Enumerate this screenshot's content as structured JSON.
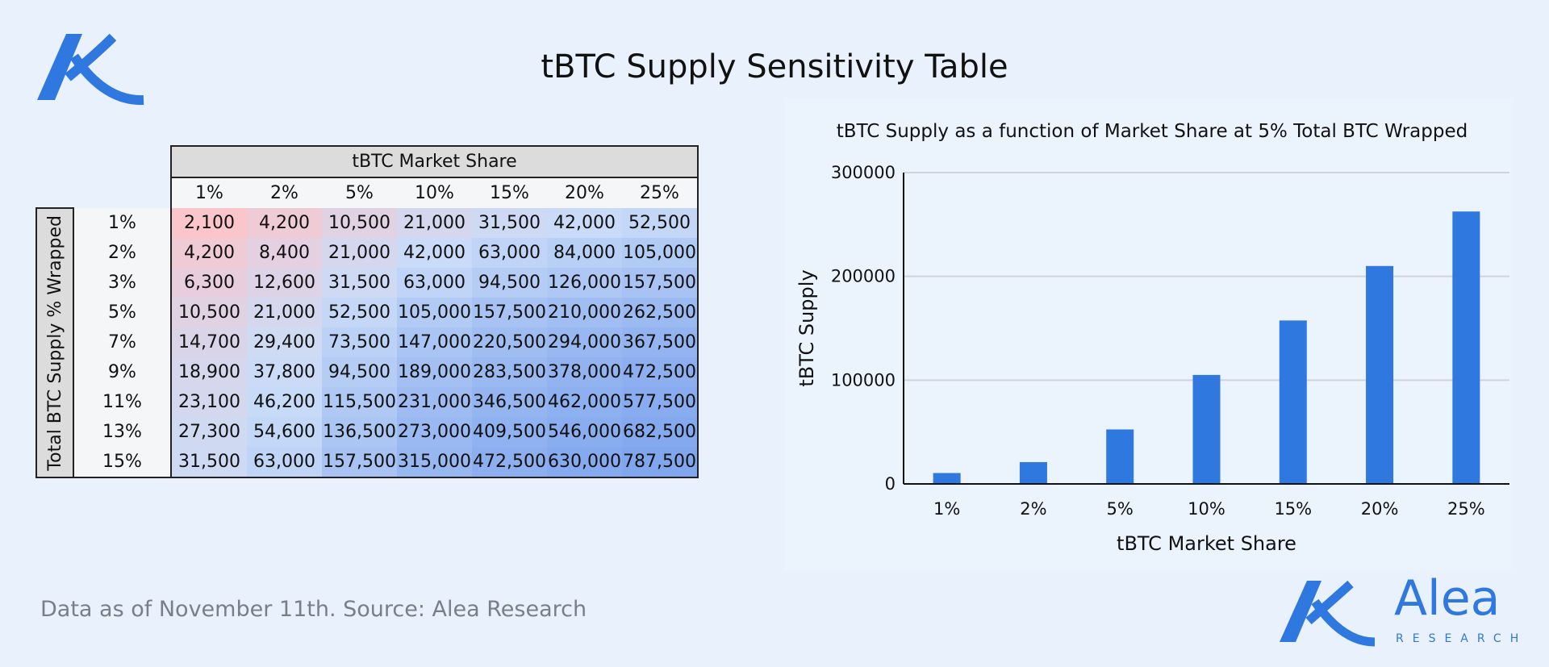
{
  "title": "tBTC Supply Sensitivity Table",
  "table": {
    "column_header": "tBTC Market Share",
    "row_header": "Total BTC Supply % Wrapped",
    "columns": [
      "1%",
      "2%",
      "5%",
      "10%",
      "15%",
      "20%",
      "25%"
    ],
    "rows": [
      {
        "label": "1%",
        "cells": [
          "2,100",
          "4,200",
          "10,500",
          "21,000",
          "31,500",
          "42,000",
          "52,500"
        ]
      },
      {
        "label": "2%",
        "cells": [
          "4,200",
          "8,400",
          "21,000",
          "42,000",
          "63,000",
          "84,000",
          "105,000"
        ]
      },
      {
        "label": "3%",
        "cells": [
          "6,300",
          "12,600",
          "31,500",
          "63,000",
          "94,500",
          "126,000",
          "157,500"
        ]
      },
      {
        "label": "5%",
        "cells": [
          "10,500",
          "21,000",
          "52,500",
          "105,000",
          "157,500",
          "210,000",
          "262,500"
        ]
      },
      {
        "label": "7%",
        "cells": [
          "14,700",
          "29,400",
          "73,500",
          "147,000",
          "220,500",
          "294,000",
          "367,500"
        ]
      },
      {
        "label": "9%",
        "cells": [
          "18,900",
          "37,800",
          "94,500",
          "189,000",
          "283,500",
          "378,000",
          "472,500"
        ]
      },
      {
        "label": "11%",
        "cells": [
          "23,100",
          "46,200",
          "115,500",
          "231,000",
          "346,500",
          "462,000",
          "577,500"
        ]
      },
      {
        "label": "13%",
        "cells": [
          "27,300",
          "54,600",
          "136,500",
          "273,000",
          "409,500",
          "546,000",
          "682,500"
        ]
      },
      {
        "label": "15%",
        "cells": [
          "31,500",
          "63,000",
          "157,500",
          "315,000",
          "472,500",
          "630,000",
          "787,500"
        ]
      }
    ]
  },
  "chart_data": {
    "type": "bar",
    "title": "tBTC Supply as a function of Market Share at 5% Total BTC Wrapped",
    "categories": [
      "1%",
      "2%",
      "5%",
      "10%",
      "15%",
      "20%",
      "25%"
    ],
    "values": [
      10500,
      21000,
      52500,
      105000,
      157500,
      210000,
      262500
    ],
    "color": "#2f78e0",
    "ylim": [
      0,
      300000
    ],
    "yticks": [
      0,
      100000,
      200000,
      300000
    ],
    "xlabel": "tBTC Market Share",
    "ylabel": "tBTC Supply",
    "grid": true
  },
  "footer": "Data as of November 11th. Source: Alea Research",
  "brand": {
    "name": "Alea",
    "tagline": "RESEARCH"
  }
}
